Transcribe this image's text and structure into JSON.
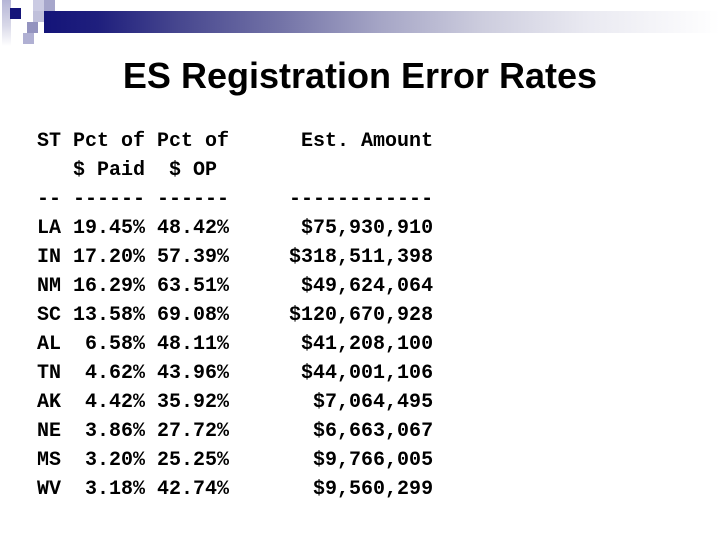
{
  "slide": {
    "title": "ES Registration Error Rates"
  },
  "table": {
    "header_lines": [
      "ST Pct of Pct of      Est. Amount",
      "   $ Paid  $ OP",
      "-- ------ ------     ------------"
    ],
    "columns": [
      {
        "id": "st",
        "label": "ST"
      },
      {
        "id": "pct_of_paid",
        "label": "Pct of $ Paid"
      },
      {
        "id": "pct_of_op",
        "label": "Pct of $ OP"
      },
      {
        "id": "est_amount",
        "label": "Est. Amount"
      }
    ],
    "rows": [
      {
        "st": "LA",
        "pct_of_paid": "19.45%",
        "pct_of_op": "48.42%",
        "est_amount": "$75,930,910"
      },
      {
        "st": "IN",
        "pct_of_paid": "17.20%",
        "pct_of_op": "57.39%",
        "est_amount": "$318,511,398"
      },
      {
        "st": "NM",
        "pct_of_paid": "16.29%",
        "pct_of_op": "63.51%",
        "est_amount": "$49,624,064"
      },
      {
        "st": "SC",
        "pct_of_paid": "13.58%",
        "pct_of_op": "69.08%",
        "est_amount": "$120,670,928"
      },
      {
        "st": "AL",
        "pct_of_paid": "6.58%",
        "pct_of_op": "48.11%",
        "est_amount": "$41,208,100"
      },
      {
        "st": "TN",
        "pct_of_paid": "4.62%",
        "pct_of_op": "43.96%",
        "est_amount": "$44,001,106"
      },
      {
        "st": "AK",
        "pct_of_paid": "4.42%",
        "pct_of_op": "35.92%",
        "est_amount": "$7,064,495"
      },
      {
        "st": "NE",
        "pct_of_paid": "3.86%",
        "pct_of_op": "27.72%",
        "est_amount": "$6,663,067"
      },
      {
        "st": "MS",
        "pct_of_paid": "3.20%",
        "pct_of_op": "25.25%",
        "est_amount": "$9,766,005"
      },
      {
        "st": "WV",
        "pct_of_paid": "3.18%",
        "pct_of_op": "42.74%",
        "est_amount": "$9,560,299"
      }
    ]
  },
  "colors": {
    "accent_navy": "#141479",
    "accent_lavender": "#b5b5d6",
    "text": "#000000",
    "background": "#ffffff"
  }
}
